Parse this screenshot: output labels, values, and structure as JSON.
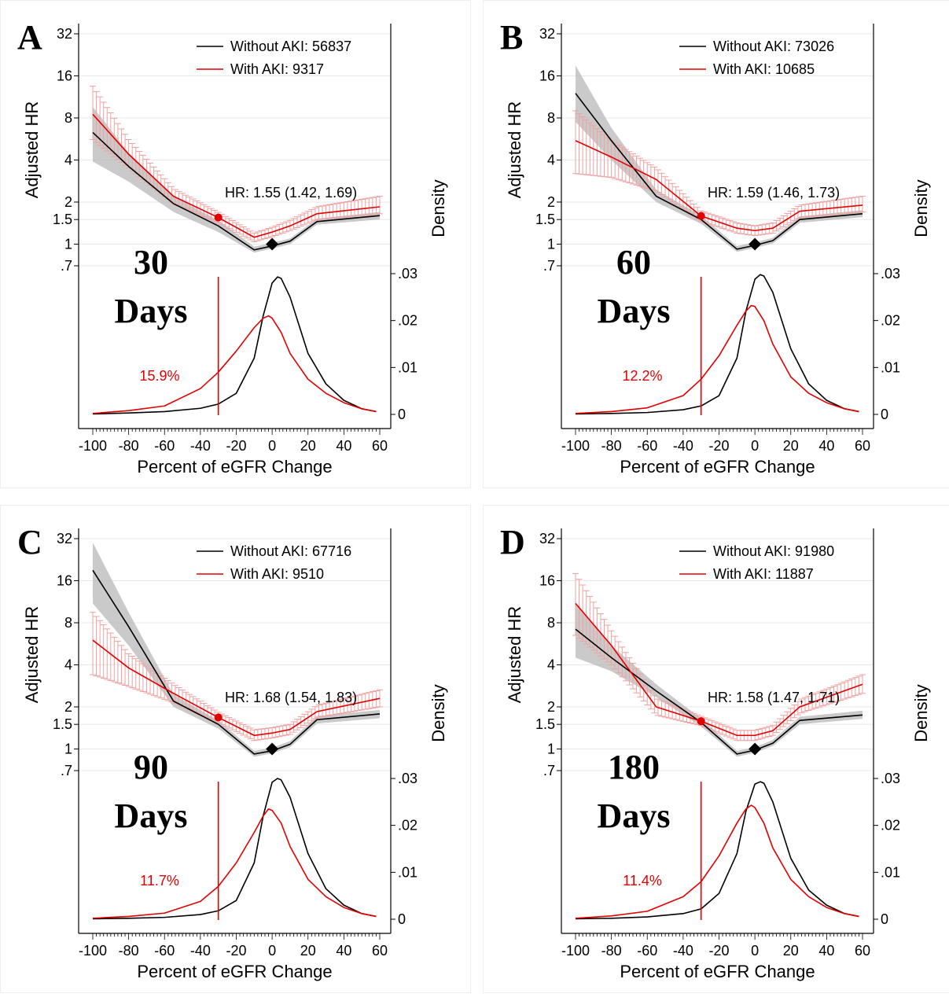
{
  "chart_data": [
    {
      "type": "line",
      "panel_label": "A",
      "days_number": "30",
      "days_word": "Days",
      "xlabel": "Percent of eGFR Change",
      "ylabel_left": "Adjusted HR",
      "ylabel_right": "Density",
      "x_ticks": [
        "-100",
        "-80",
        "-60",
        "-40",
        "-20",
        "0",
        "20",
        "40",
        "60"
      ],
      "hr_ticks": [
        ".7",
        "1",
        "1.5",
        "2",
        "4",
        "8",
        "16",
        "32"
      ],
      "density_ticks": [
        "0",
        ".01",
        ".02",
        ".03"
      ],
      "hr_scale": "log",
      "xlim": [
        -100,
        60
      ],
      "grid": true,
      "legend_position": "top-right",
      "legend": [
        "Without AKI: 56837",
        "With AKI: 9317"
      ],
      "hr_annotation": "HR: 1.55 (1.42, 1.69)",
      "hr_point": {
        "x": -30,
        "y": 1.55
      },
      "reference_point": {
        "x": 0,
        "y": 1
      },
      "cutoff_x": -30,
      "percent_label": "15.9%",
      "series": [
        {
          "name": "Without AKI",
          "color": "#000000",
          "x": [
            -100,
            -80,
            -55,
            -30,
            -10,
            0,
            10,
            25,
            60
          ],
          "hr": [
            6.3,
            3.6,
            1.95,
            1.35,
            0.91,
            0.97,
            1.05,
            1.45,
            1.6
          ],
          "hr_lower": [
            3.9,
            2.8,
            1.7,
            1.22,
            0.87,
            0.93,
            1.0,
            1.38,
            1.5
          ],
          "hr_upper": [
            9.6,
            4.5,
            2.2,
            1.48,
            0.96,
            1.02,
            1.1,
            1.52,
            1.7
          ]
        },
        {
          "name": "With AKI",
          "color": "#e00000",
          "x": [
            -100,
            -80,
            -55,
            -30,
            -10,
            0,
            10,
            25,
            60
          ],
          "hr": [
            8.5,
            4.4,
            2.2,
            1.55,
            1.12,
            1.22,
            1.35,
            1.65,
            1.85
          ],
          "hr_lower": [
            5.6,
            3.5,
            1.95,
            1.42,
            1.04,
            1.13,
            1.25,
            1.5,
            1.65
          ],
          "hr_upper": [
            13.5,
            5.6,
            2.5,
            1.69,
            1.2,
            1.32,
            1.48,
            1.85,
            2.2
          ]
        }
      ],
      "density": [
        {
          "name": "Without AKI",
          "color": "#000000",
          "x": [
            -100,
            -80,
            -60,
            -40,
            -30,
            -20,
            -10,
            -5,
            0,
            3,
            5,
            10,
            20,
            30,
            40,
            50,
            58
          ],
          "y": [
            0.0001,
            0.0003,
            0.0006,
            0.0013,
            0.0022,
            0.0045,
            0.012,
            0.021,
            0.028,
            0.0293,
            0.029,
            0.025,
            0.013,
            0.0065,
            0.003,
            0.0012,
            0.0006
          ]
        },
        {
          "name": "With AKI",
          "color": "#e00000",
          "x": [
            -100,
            -80,
            -60,
            -40,
            -30,
            -20,
            -10,
            -5,
            -2,
            0,
            5,
            10,
            20,
            30,
            40,
            50,
            58
          ],
          "y": [
            0.0002,
            0.0008,
            0.0018,
            0.0055,
            0.009,
            0.0135,
            0.0185,
            0.0205,
            0.021,
            0.0205,
            0.0175,
            0.013,
            0.0075,
            0.0045,
            0.0025,
            0.0012,
            0.0006
          ]
        }
      ]
    },
    {
      "type": "line",
      "panel_label": "B",
      "days_number": "60",
      "days_word": "Days",
      "xlabel": "Percent of eGFR Change",
      "ylabel_left": "Adjusted HR",
      "ylabel_right": "Density",
      "x_ticks": [
        "-100",
        "-80",
        "-60",
        "-40",
        "-20",
        "0",
        "20",
        "40",
        "60"
      ],
      "hr_ticks": [
        ".7",
        "1",
        "1.5",
        "2",
        "4",
        "8",
        "16",
        "32"
      ],
      "density_ticks": [
        "0",
        ".01",
        ".02",
        ".03"
      ],
      "hr_scale": "log",
      "xlim": [
        -100,
        60
      ],
      "grid": true,
      "legend_position": "top-right",
      "legend": [
        "Without AKI: 73026",
        "With AKI: 10685"
      ],
      "hr_annotation": "HR: 1.59 (1.46, 1.73)",
      "hr_point": {
        "x": -30,
        "y": 1.59
      },
      "reference_point": {
        "x": 0,
        "y": 1
      },
      "cutoff_x": -30,
      "percent_label": "12.2%",
      "series": [
        {
          "name": "Without AKI",
          "color": "#000000",
          "x": [
            -100,
            -80,
            -55,
            -30,
            -10,
            0,
            10,
            25,
            60
          ],
          "hr": [
            12,
            5.5,
            2.2,
            1.5,
            0.92,
            0.98,
            1.06,
            1.5,
            1.65
          ],
          "hr_lower": [
            7.5,
            4.0,
            2.0,
            1.4,
            0.88,
            0.94,
            1.01,
            1.42,
            1.56
          ],
          "hr_upper": [
            19,
            6.8,
            2.45,
            1.6,
            0.97,
            1.03,
            1.11,
            1.58,
            1.75
          ]
        },
        {
          "name": "With AKI",
          "color": "#e00000",
          "x": [
            -100,
            -80,
            -55,
            -30,
            -10,
            0,
            10,
            25,
            60
          ],
          "hr": [
            5.5,
            4.2,
            2.9,
            1.59,
            1.3,
            1.25,
            1.3,
            1.72,
            1.9
          ],
          "hr_lower": [
            3.2,
            3.0,
            2.4,
            1.46,
            1.2,
            1.15,
            1.2,
            1.55,
            1.7
          ],
          "hr_upper": [
            9.0,
            5.5,
            3.5,
            1.73,
            1.42,
            1.35,
            1.42,
            1.9,
            2.2
          ]
        }
      ],
      "density": [
        {
          "name": "Without AKI",
          "color": "#000000",
          "x": [
            -100,
            -80,
            -60,
            -40,
            -30,
            -20,
            -10,
            -5,
            0,
            3,
            5,
            10,
            20,
            30,
            40,
            50,
            58
          ],
          "y": [
            0.0001,
            0.0002,
            0.0004,
            0.001,
            0.0018,
            0.004,
            0.012,
            0.022,
            0.0288,
            0.0298,
            0.0295,
            0.026,
            0.014,
            0.0065,
            0.003,
            0.0012,
            0.0006
          ]
        },
        {
          "name": "With AKI",
          "color": "#e00000",
          "x": [
            -100,
            -80,
            -60,
            -40,
            -30,
            -20,
            -10,
            -5,
            -2,
            0,
            5,
            10,
            20,
            30,
            40,
            50,
            58
          ],
          "y": [
            0.0002,
            0.0006,
            0.0014,
            0.004,
            0.0075,
            0.0125,
            0.019,
            0.022,
            0.0232,
            0.023,
            0.02,
            0.015,
            0.008,
            0.0045,
            0.0025,
            0.0012,
            0.0006
          ]
        }
      ]
    },
    {
      "type": "line",
      "panel_label": "C",
      "days_number": "90",
      "days_word": "Days",
      "xlabel": "Percent of eGFR Change",
      "ylabel_left": "Adjusted HR",
      "ylabel_right": "Density",
      "x_ticks": [
        "-100",
        "-80",
        "-60",
        "-40",
        "-20",
        "0",
        "20",
        "40",
        "60"
      ],
      "hr_ticks": [
        ".7",
        "1",
        "1.5",
        "2",
        "4",
        "8",
        "16",
        "32"
      ],
      "density_ticks": [
        "0",
        ".01",
        ".02",
        ".03"
      ],
      "hr_scale": "log",
      "xlim": [
        -100,
        60
      ],
      "grid": true,
      "legend_position": "top-right",
      "legend": [
        "Without AKI: 67716",
        "With AKI: 9510"
      ],
      "hr_annotation": "HR: 1.68 (1.54, 1.83)",
      "hr_point": {
        "x": -30,
        "y": 1.68
      },
      "reference_point": {
        "x": 0,
        "y": 1
      },
      "cutoff_x": -30,
      "percent_label": "11.7%",
      "series": [
        {
          "name": "Without AKI",
          "color": "#000000",
          "x": [
            -100,
            -80,
            -55,
            -30,
            -10,
            0,
            10,
            25,
            60
          ],
          "hr": [
            19,
            7.5,
            2.2,
            1.5,
            0.92,
            0.97,
            1.08,
            1.62,
            1.78
          ],
          "hr_lower": [
            11,
            5.5,
            2.0,
            1.4,
            0.88,
            0.93,
            1.03,
            1.52,
            1.66
          ],
          "hr_upper": [
            30,
            9.5,
            2.45,
            1.6,
            0.97,
            1.02,
            1.14,
            1.72,
            1.9
          ]
        },
        {
          "name": "With AKI",
          "color": "#e00000",
          "x": [
            -100,
            -80,
            -55,
            -30,
            -10,
            0,
            10,
            25,
            60
          ],
          "hr": [
            6,
            3.8,
            2.5,
            1.68,
            1.25,
            1.3,
            1.38,
            1.85,
            2.3
          ],
          "hr_lower": [
            3.4,
            2.8,
            2.15,
            1.54,
            1.15,
            1.2,
            1.27,
            1.68,
            2.0
          ],
          "hr_upper": [
            9.5,
            4.8,
            2.9,
            1.83,
            1.37,
            1.42,
            1.5,
            2.05,
            2.65
          ]
        }
      ],
      "density": [
        {
          "name": "Without AKI",
          "color": "#000000",
          "x": [
            -100,
            -80,
            -60,
            -40,
            -30,
            -20,
            -10,
            -5,
            0,
            3,
            5,
            10,
            20,
            30,
            40,
            50,
            58
          ],
          "y": [
            0.0001,
            0.0002,
            0.0004,
            0.001,
            0.0018,
            0.004,
            0.012,
            0.022,
            0.0292,
            0.03,
            0.0297,
            0.026,
            0.014,
            0.0065,
            0.003,
            0.0012,
            0.0006
          ]
        },
        {
          "name": "With AKI",
          "color": "#e00000",
          "x": [
            -100,
            -80,
            -60,
            -40,
            -30,
            -20,
            -10,
            -5,
            -2,
            0,
            5,
            10,
            20,
            30,
            40,
            50,
            58
          ],
          "y": [
            0.0002,
            0.0006,
            0.0013,
            0.0038,
            0.007,
            0.012,
            0.0185,
            0.022,
            0.0235,
            0.0232,
            0.0205,
            0.0155,
            0.0085,
            0.0048,
            0.0025,
            0.0012,
            0.0006
          ]
        }
      ]
    },
    {
      "type": "line",
      "panel_label": "D",
      "days_number": "180",
      "days_word": "Days",
      "xlabel": "Percent of eGFR Change",
      "ylabel_left": "Adjusted HR",
      "ylabel_right": "Density",
      "x_ticks": [
        "-100",
        "-80",
        "-60",
        "-40",
        "-20",
        "0",
        "20",
        "40",
        "60"
      ],
      "hr_ticks": [
        ".7",
        "1",
        "1.5",
        "2",
        "4",
        "8",
        "16",
        "32"
      ],
      "density_ticks": [
        "0",
        ".01",
        ".02",
        ".03"
      ],
      "hr_scale": "log",
      "xlim": [
        -100,
        60
      ],
      "grid": true,
      "legend_position": "top-right",
      "legend": [
        "Without AKI: 91980",
        "With AKI: 11887"
      ],
      "hr_annotation": "HR: 1.58 (1.47, 1.71)",
      "hr_point": {
        "x": -30,
        "y": 1.58
      },
      "reference_point": {
        "x": 0,
        "y": 1
      },
      "cutoff_x": -30,
      "percent_label": "11.4%",
      "series": [
        {
          "name": "Without AKI",
          "color": "#000000",
          "x": [
            -100,
            -80,
            -55,
            -30,
            -10,
            0,
            10,
            25,
            60
          ],
          "hr": [
            7.2,
            4.5,
            2.6,
            1.55,
            0.92,
            0.98,
            1.1,
            1.6,
            1.75
          ],
          "hr_lower": [
            4.5,
            3.6,
            2.35,
            1.45,
            0.88,
            0.94,
            1.05,
            1.5,
            1.64
          ],
          "hr_upper": [
            11,
            5.5,
            2.9,
            1.65,
            0.97,
            1.03,
            1.16,
            1.7,
            1.88
          ]
        },
        {
          "name": "With AKI",
          "color": "#e00000",
          "x": [
            -100,
            -80,
            -55,
            -30,
            -10,
            0,
            10,
            25,
            60
          ],
          "hr": [
            11,
            5.5,
            2.0,
            1.58,
            1.25,
            1.25,
            1.35,
            2.0,
            2.9
          ],
          "hr_lower": [
            6.5,
            4.0,
            1.75,
            1.47,
            1.15,
            1.15,
            1.25,
            1.8,
            2.5
          ],
          "hr_upper": [
            18,
            7.0,
            2.3,
            1.71,
            1.36,
            1.36,
            1.47,
            2.25,
            3.4
          ]
        }
      ],
      "density": [
        {
          "name": "Without AKI",
          "color": "#000000",
          "x": [
            -100,
            -80,
            -60,
            -40,
            -30,
            -20,
            -10,
            -5,
            0,
            3,
            5,
            10,
            20,
            30,
            40,
            50,
            58
          ],
          "y": [
            0.0001,
            0.0002,
            0.0005,
            0.0012,
            0.0022,
            0.0055,
            0.014,
            0.023,
            0.0288,
            0.0293,
            0.029,
            0.025,
            0.013,
            0.0062,
            0.003,
            0.0012,
            0.0006
          ]
        },
        {
          "name": "With AKI",
          "color": "#e00000",
          "x": [
            -100,
            -80,
            -60,
            -40,
            -30,
            -20,
            -10,
            -5,
            -2,
            0,
            5,
            10,
            20,
            30,
            40,
            50,
            58
          ],
          "y": [
            0.0002,
            0.0007,
            0.0017,
            0.0048,
            0.008,
            0.0135,
            0.0205,
            0.0235,
            0.0243,
            0.0238,
            0.0205,
            0.0152,
            0.0085,
            0.0048,
            0.0025,
            0.0012,
            0.0006
          ]
        }
      ]
    }
  ]
}
